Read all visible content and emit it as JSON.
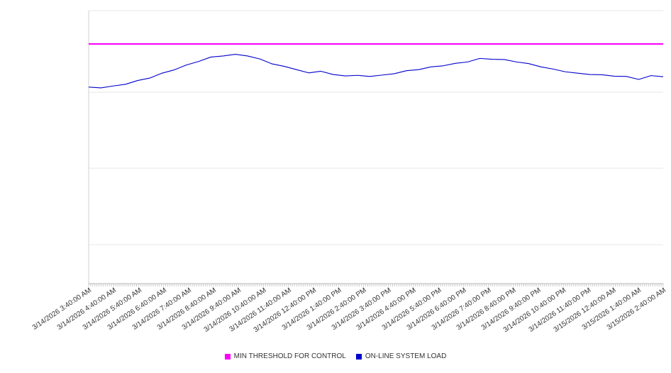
{
  "chart_data": {
    "type": "line",
    "title": "",
    "xlabel": "",
    "ylabel": "",
    "grid": true,
    "legend_position": "bottom",
    "y_axis_labels_visible": false,
    "ylim": [
      0,
      100
    ],
    "y_gridlines": [
      14.3,
      42.3,
      70.1,
      100
    ],
    "x_minor_ticks_per_interval": 12,
    "x_tick_labels": [
      "3/14/2026 3:40:00 AM",
      "3/14/2026 4:40:00 AM",
      "3/14/2026 5:40:00 AM",
      "3/14/2026 6:40:00 AM",
      "3/14/2026 7:40:00 AM",
      "3/14/2026 8:40:00 AM",
      "3/14/2026 9:40:00 AM",
      "3/14/2026 10:40:00 AM",
      "3/14/2026 11:40:00 AM",
      "3/14/2026 12:40:00 PM",
      "3/14/2026 1:40:00 PM",
      "3/14/2026 2:40:00 PM",
      "3/14/2026 3:40:00 PM",
      "3/14/2026 4:40:00 PM",
      "3/14/2026 5:40:00 PM",
      "3/14/2026 6:40:00 PM",
      "3/14/2026 7:40:00 PM",
      "3/14/2026 8:40:00 PM",
      "3/14/2026 9:40:00 PM",
      "3/14/2026 10:40:00 PM",
      "3/14/2026 11:40:00 PM",
      "3/15/2026 12:40:00 AM",
      "3/15/2026 1:40:00 AM",
      "3/15/2026 2:40:00 AM"
    ],
    "series": [
      {
        "name": "MIN THRESHOLD FOR CONTROL",
        "type": "constant-line",
        "color": "#ff00ff",
        "value": 87.8
      },
      {
        "name": "ON-LINE SYSTEM LOAD",
        "type": "line",
        "color": "#0000cd",
        "points_per_hour": 2,
        "values": [
          72.0,
          71.7,
          72.4,
          73.0,
          74.4,
          75.3,
          77.1,
          78.3,
          80.1,
          81.4,
          83.0,
          83.4,
          84.0,
          83.4,
          82.3,
          80.5,
          79.6,
          78.4,
          77.2,
          77.8,
          76.6,
          76.1,
          76.3,
          75.9,
          76.4,
          76.9,
          78.0,
          78.4,
          79.4,
          79.8,
          80.7,
          81.2,
          82.5,
          82.2,
          82.1,
          81.2,
          80.6,
          79.4,
          78.6,
          77.6,
          77.1,
          76.6,
          76.5,
          76.0,
          75.9,
          74.8,
          76.2,
          75.8
        ]
      }
    ],
    "colors": {
      "gridline": "#e7e7e7",
      "axis_line": "#d0d0d0",
      "bottom_axis": "#b3b3b3",
      "tick": "#cccccc",
      "label_text": "#333333"
    }
  }
}
